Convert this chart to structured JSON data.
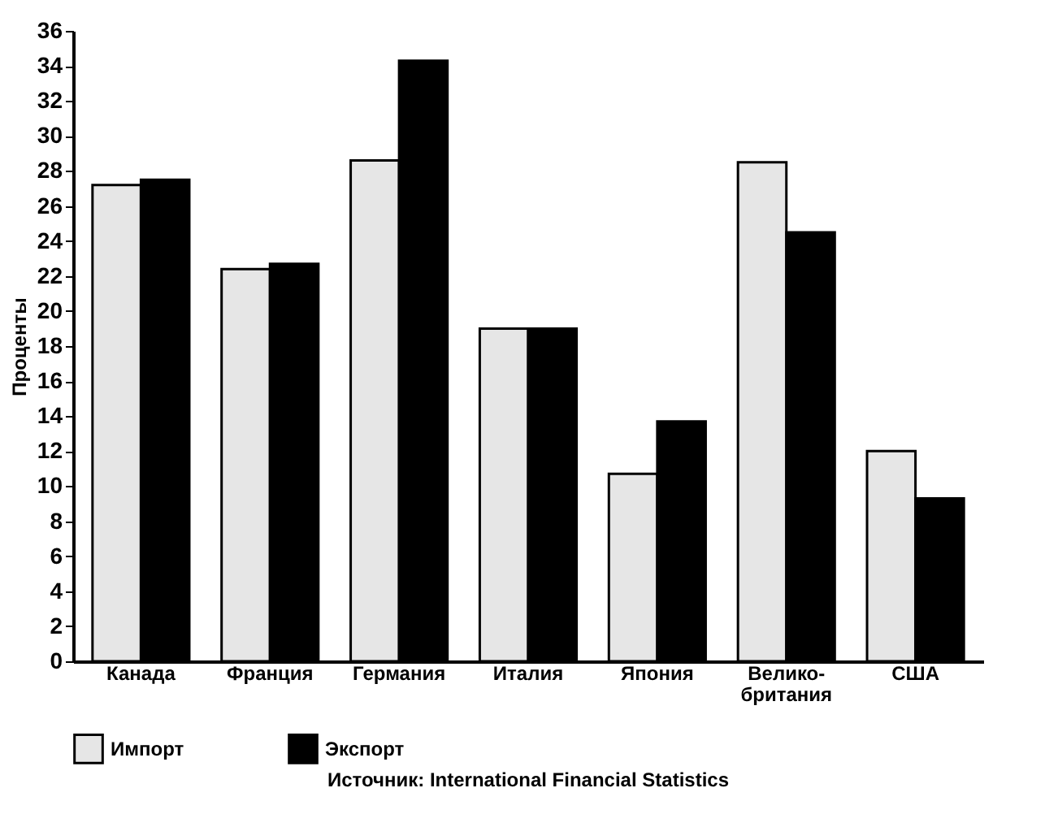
{
  "chart_data": {
    "type": "bar",
    "ylabel": "Проценты",
    "categories": [
      "Канада",
      "Франция",
      "Германия",
      "Италия",
      "Япония",
      "Велико-\nбритания",
      "США"
    ],
    "series": [
      {
        "name": "Импорт",
        "color": "#e6e6e6",
        "values": [
          27.2,
          22.4,
          28.6,
          19,
          10.7,
          28.5,
          12
        ]
      },
      {
        "name": "Экспорт",
        "color": "#000000",
        "values": [
          27.5,
          22.7,
          34.3,
          19,
          13.7,
          24.5,
          9.3
        ]
      }
    ],
    "ylim": [
      0,
      36
    ],
    "yticks": [
      0,
      2,
      4,
      6,
      8,
      10,
      12,
      14,
      16,
      18,
      20,
      22,
      24,
      26,
      28,
      30,
      32,
      34,
      36
    ],
    "legend": "bottom",
    "annotations": [
      "Источник: International Financial Statistics"
    ]
  }
}
